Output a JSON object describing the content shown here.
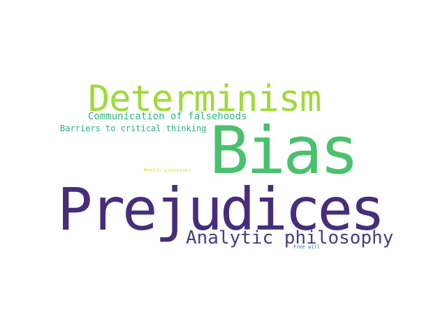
{
  "word_cloud": {
    "words": [
      {
        "text": "Bias",
        "color": "#4ac16d"
      },
      {
        "text": "Prejudices",
        "color": "#472d7b"
      },
      {
        "text": "Determinism",
        "color": "#a0da39"
      },
      {
        "text": "Analytic philosophy",
        "color": "#433e85"
      },
      {
        "text": "Communication of falsehoods",
        "color": "#2fb47c"
      },
      {
        "text": "Barriers to critical thinking",
        "color": "#2ab07f"
      },
      {
        "text": "Mental processes",
        "color": "#dde318"
      },
      {
        "text": "Free will",
        "color": "#26828e"
      }
    ]
  }
}
